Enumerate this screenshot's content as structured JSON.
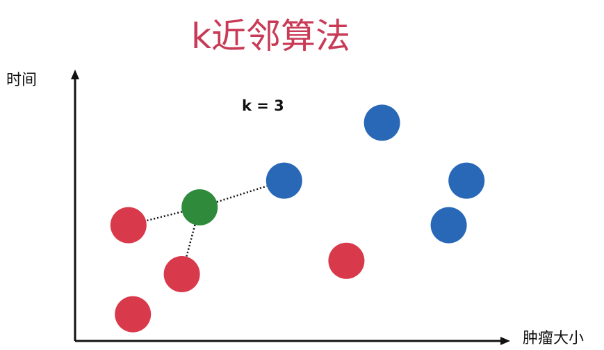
{
  "title": "k近邻算法",
  "y_axis_label": "时间",
  "x_axis_label": "肿瘤大小",
  "k_label": "k = 3",
  "colors": {
    "title": "#c83a55",
    "red_class": "#d8394b",
    "blue_class": "#2868b7",
    "query": "#2f8a3b",
    "axis": "#111111"
  },
  "points": [
    {
      "class": "red",
      "x": 1.2,
      "y": 2.6
    },
    {
      "class": "red",
      "x": 2.4,
      "y": 1.5
    },
    {
      "class": "red",
      "x": 1.3,
      "y": 0.6
    },
    {
      "class": "red",
      "x": 6.1,
      "y": 1.8
    },
    {
      "class": "blue",
      "x": 4.7,
      "y": 3.6
    },
    {
      "class": "blue",
      "x": 6.9,
      "y": 4.9
    },
    {
      "class": "blue",
      "x": 8.8,
      "y": 3.6
    },
    {
      "class": "blue",
      "x": 8.4,
      "y": 2.6
    }
  ],
  "query_point": {
    "class": "query",
    "x": 2.8,
    "y": 3.0
  },
  "neighbors": [
    0,
    1,
    4
  ]
}
